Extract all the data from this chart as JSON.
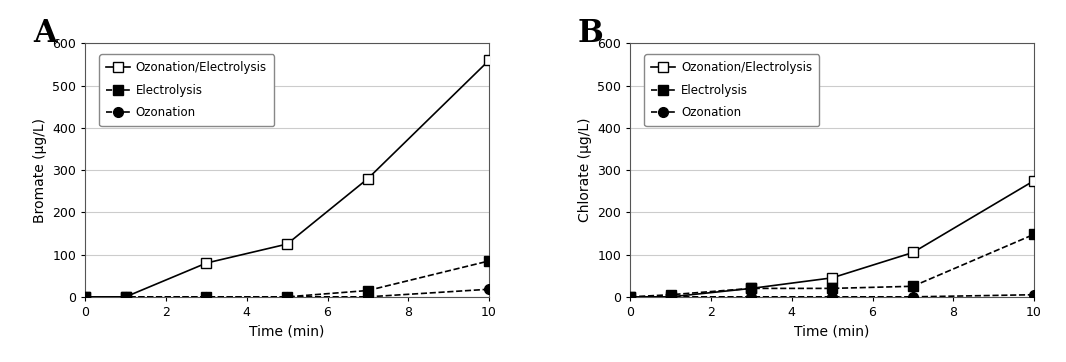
{
  "time": [
    0,
    1,
    3,
    5,
    7,
    10
  ],
  "A_ozonation_electrolysis": [
    0,
    0,
    80,
    125,
    280,
    560
  ],
  "A_electrolysis": [
    0,
    0,
    0,
    0,
    15,
    85
  ],
  "A_ozonation": [
    0,
    0,
    0,
    0,
    0,
    18
  ],
  "B_ozonation_electrolysis": [
    0,
    0,
    20,
    45,
    105,
    275
  ],
  "B_electrolysis": [
    0,
    5,
    20,
    20,
    25,
    148
  ],
  "B_ozonation": [
    0,
    0,
    0,
    0,
    0,
    5
  ],
  "ylabel_A": "Bromate (μg/L)",
  "ylabel_B": "Chlorate (μg/L)",
  "xlabel": "Time (min)",
  "ylim": [
    0,
    600
  ],
  "yticks": [
    0,
    100,
    200,
    300,
    400,
    500,
    600
  ],
  "xlim": [
    0,
    10
  ],
  "xticks": [
    0,
    2,
    4,
    6,
    8,
    10
  ],
  "label_oe": "Ozonation/Electrolysis",
  "label_e": "Electrolysis",
  "label_o": "Ozonation",
  "panel_A_label": "A",
  "panel_B_label": "B",
  "bg_color": "#ffffff",
  "grid_color": "#cccccc",
  "line_color": "#000000"
}
